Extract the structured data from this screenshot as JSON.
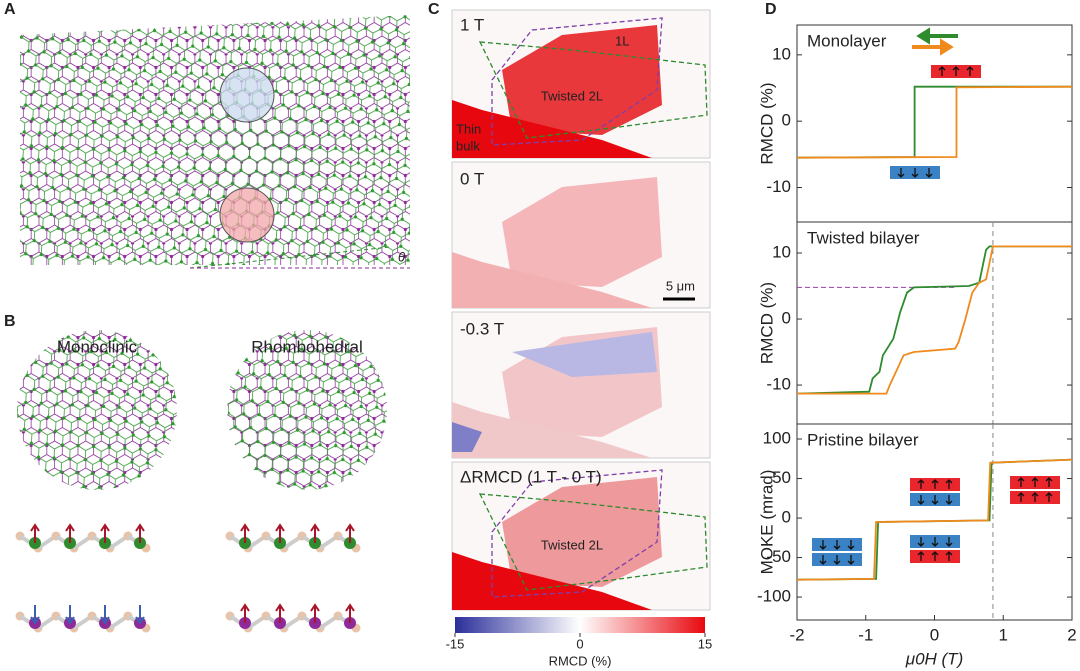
{
  "panels": {
    "a": {
      "label": "A",
      "angle_symbol": "θ"
    },
    "b": {
      "label": "B",
      "structures": [
        "Monoclinic",
        "Rhombohedral"
      ]
    },
    "c": {
      "label": "C",
      "images": [
        {
          "field": "1 T",
          "labels": [
            "1L",
            "Twisted 2L",
            "Thin",
            "bulk"
          ]
        },
        {
          "field": "0 T",
          "scale_bar": "5 μm"
        },
        {
          "field": "-0.3 T"
        },
        {
          "field": "ΔRMCD (1 T - 0 T)",
          "labels": [
            "Twisted 2L"
          ]
        }
      ],
      "colorbar": {
        "lim": [
          -15,
          15
        ],
        "ticks": [
          -15,
          0,
          15
        ],
        "label": "RMCD (%)"
      }
    },
    "d": {
      "label": "D"
    }
  },
  "chart_data": [
    {
      "type": "line",
      "title": "Monolayer",
      "y_label": "RMCD (%)",
      "xlim": [
        -2,
        2
      ],
      "ylim": [
        -15.2,
        14.5
      ],
      "yticks": [
        -10,
        0,
        10
      ],
      "series": [
        {
          "color": "#2e8b2e",
          "x": [
            2,
            -0.29,
            -0.29,
            -2
          ],
          "values": [
            5.2,
            5.2,
            -5.4,
            -5.5
          ]
        },
        {
          "color": "#f08a1c",
          "x": [
            -2,
            0.32,
            0.32,
            2
          ],
          "values": [
            -5.5,
            -5.4,
            5.1,
            5.2
          ]
        }
      ]
    },
    {
      "type": "line",
      "title": "Twisted bilayer",
      "y_label": "RMCD (%)",
      "xlim": [
        -2,
        2
      ],
      "ylim": [
        -15.9,
        14.7
      ],
      "yticks": [
        -10,
        0,
        10
      ],
      "hline": {
        "value": 4.8,
        "xlim": [
          -2,
          0.3
        ],
        "color": "#9b3fae"
      },
      "vline": {
        "value": 0.85
      },
      "series": [
        {
          "color": "#2e8b2e",
          "x": [
            2,
            0.8,
            0.75,
            0.65,
            0.5,
            -0.3,
            -0.4,
            -0.5,
            -0.6,
            -0.75,
            -0.8,
            -0.9,
            -0.95,
            -2
          ],
          "values": [
            11,
            11,
            10.5,
            5.5,
            5,
            4.8,
            4,
            1,
            -3,
            -5.5,
            -8,
            -9,
            -11,
            -11.3
          ]
        },
        {
          "color": "#f08a1c",
          "x": [
            -2,
            -0.7,
            -0.65,
            -0.45,
            -0.3,
            0.3,
            0.35,
            0.45,
            0.55,
            0.65,
            0.75,
            0.85,
            2
          ],
          "values": [
            -11.3,
            -11.3,
            -10,
            -5.5,
            -5,
            -4.5,
            -3.5,
            0,
            4,
            5.5,
            6,
            11,
            11
          ]
        }
      ]
    },
    {
      "type": "line",
      "title": "Pristine bilayer",
      "y_label": "MOKE (mrad)",
      "x_label": "μ0H (T)",
      "xlim": [
        -2,
        2
      ],
      "ylim": [
        -129,
        119
      ],
      "yticks": [
        -100,
        -50,
        0,
        50,
        100
      ],
      "xticks": [
        -2,
        -1,
        0,
        1,
        2
      ],
      "vline": {
        "value": 0.85
      },
      "series": [
        {
          "color": "#2e8b2e",
          "x": [
            2,
            0.83,
            0.8,
            -0.82,
            -0.85,
            -2
          ],
          "values": [
            74,
            70,
            -3,
            -5,
            -77,
            -78
          ]
        },
        {
          "color": "#f08a1c",
          "x": [
            -2,
            -0.88,
            -0.85,
            0.78,
            0.81,
            2
          ],
          "values": [
            -78,
            -77,
            -5,
            -3,
            70,
            74
          ]
        }
      ]
    }
  ]
}
